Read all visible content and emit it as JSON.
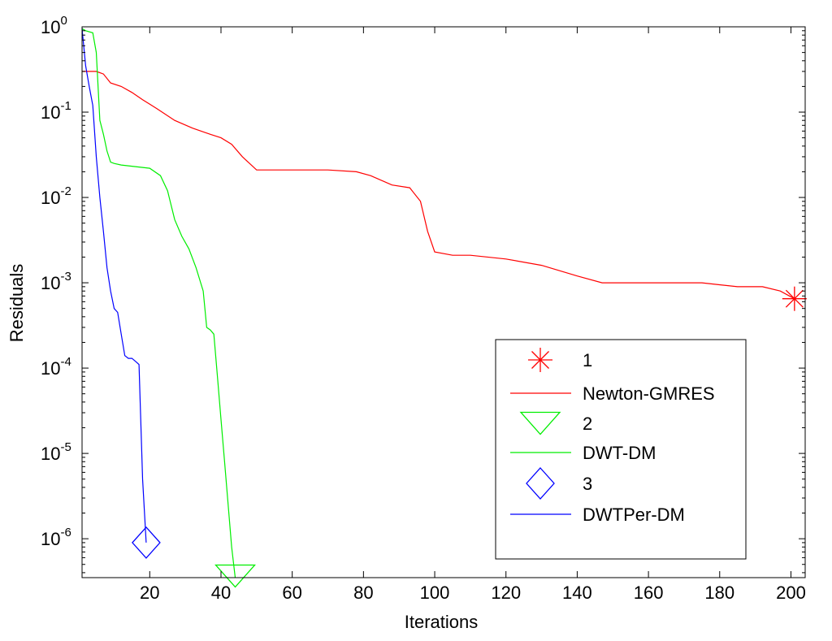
{
  "chart_data": {
    "type": "line",
    "xlabel": "Iterations",
    "ylabel": "Residuals",
    "xlim": [
      1,
      204
    ],
    "ylim": [
      3.5e-07,
      1
    ],
    "yscale": "log",
    "grid": false,
    "legend_placement": "bottom-right",
    "x_ticks": [
      20,
      40,
      60,
      80,
      100,
      120,
      140,
      160,
      180,
      200
    ],
    "y_ticks": [
      {
        "value": 1,
        "base": "10",
        "exp": "0"
      },
      {
        "value": 0.1,
        "base": "10",
        "exp": "-1"
      },
      {
        "value": 0.01,
        "base": "10",
        "exp": "-2"
      },
      {
        "value": 0.001,
        "base": "10",
        "exp": "-3"
      },
      {
        "value": 0.0001,
        "base": "10",
        "exp": "-4"
      },
      {
        "value": 1e-05,
        "base": "10",
        "exp": "-5"
      },
      {
        "value": 1e-06,
        "base": "10",
        "exp": "-6"
      }
    ],
    "series": [
      {
        "name": "Newton-GMRES",
        "color": "#ff0000",
        "marker": "asterisk",
        "marker_label": "1",
        "x": [
          1,
          3,
          5,
          7,
          9,
          12,
          15,
          18,
          22,
          27,
          32,
          37,
          40,
          43,
          46,
          50,
          55,
          60,
          70,
          78,
          82,
          88,
          93,
          96,
          98,
          100,
          105,
          110,
          120,
          130,
          140,
          147,
          155,
          165,
          175,
          185,
          192,
          197,
          201
        ],
        "y": [
          0.3,
          0.3,
          0.3,
          0.28,
          0.22,
          0.2,
          0.17,
          0.14,
          0.11,
          0.08,
          0.065,
          0.055,
          0.05,
          0.042,
          0.03,
          0.021,
          0.021,
          0.021,
          0.021,
          0.02,
          0.018,
          0.014,
          0.013,
          0.009,
          0.004,
          0.0023,
          0.0021,
          0.0021,
          0.0019,
          0.0016,
          0.0012,
          0.001,
          0.001,
          0.001,
          0.001,
          0.0009,
          0.0009,
          0.0008,
          0.00065
        ]
      },
      {
        "name": "DWT-DM",
        "color": "#00ee00",
        "marker": "triangle-down",
        "marker_label": "2",
        "x": [
          1,
          2,
          4,
          5,
          6,
          7,
          8,
          9,
          10,
          12,
          16,
          20,
          23,
          25,
          27,
          29,
          31,
          33,
          35,
          36,
          37,
          38,
          39,
          40,
          41,
          42,
          43,
          44
        ],
        "y": [
          0.95,
          0.9,
          0.85,
          0.5,
          0.08,
          0.055,
          0.035,
          0.026,
          0.025,
          0.024,
          0.023,
          0.022,
          0.018,
          0.012,
          0.0055,
          0.0035,
          0.0025,
          0.0015,
          0.0008,
          0.0003,
          0.00028,
          0.00025,
          8e-05,
          2.5e-05,
          8e-06,
          2.5e-06,
          8e-07,
          3.5e-07
        ]
      },
      {
        "name": "DWTPer-DM",
        "color": "#0000ff",
        "marker": "diamond",
        "marker_label": "3",
        "x": [
          1,
          2,
          3,
          4,
          5,
          6,
          7,
          8,
          9,
          10,
          11,
          12,
          13,
          14,
          15,
          16,
          17,
          18,
          19
        ],
        "y": [
          0.95,
          0.35,
          0.2,
          0.12,
          0.03,
          0.01,
          0.004,
          0.0015,
          0.0008,
          0.0005,
          0.00045,
          0.00025,
          0.00014,
          0.00013,
          0.00013,
          0.00012,
          0.00011,
          5e-06,
          9e-07
        ]
      }
    ],
    "legend": [
      {
        "label": "1",
        "marker": "asterisk",
        "color": "#ff0000"
      },
      {
        "label": "Newton-GMRES",
        "line": true,
        "color": "#ff0000"
      },
      {
        "label": "2",
        "marker": "triangle-down",
        "color": "#00ee00"
      },
      {
        "label": "DWT-DM",
        "line": true,
        "color": "#00ee00"
      },
      {
        "label": "3",
        "marker": "diamond",
        "color": "#0000ff"
      },
      {
        "label": "DWTPer-DM",
        "line": true,
        "color": "#0000ff"
      }
    ]
  }
}
